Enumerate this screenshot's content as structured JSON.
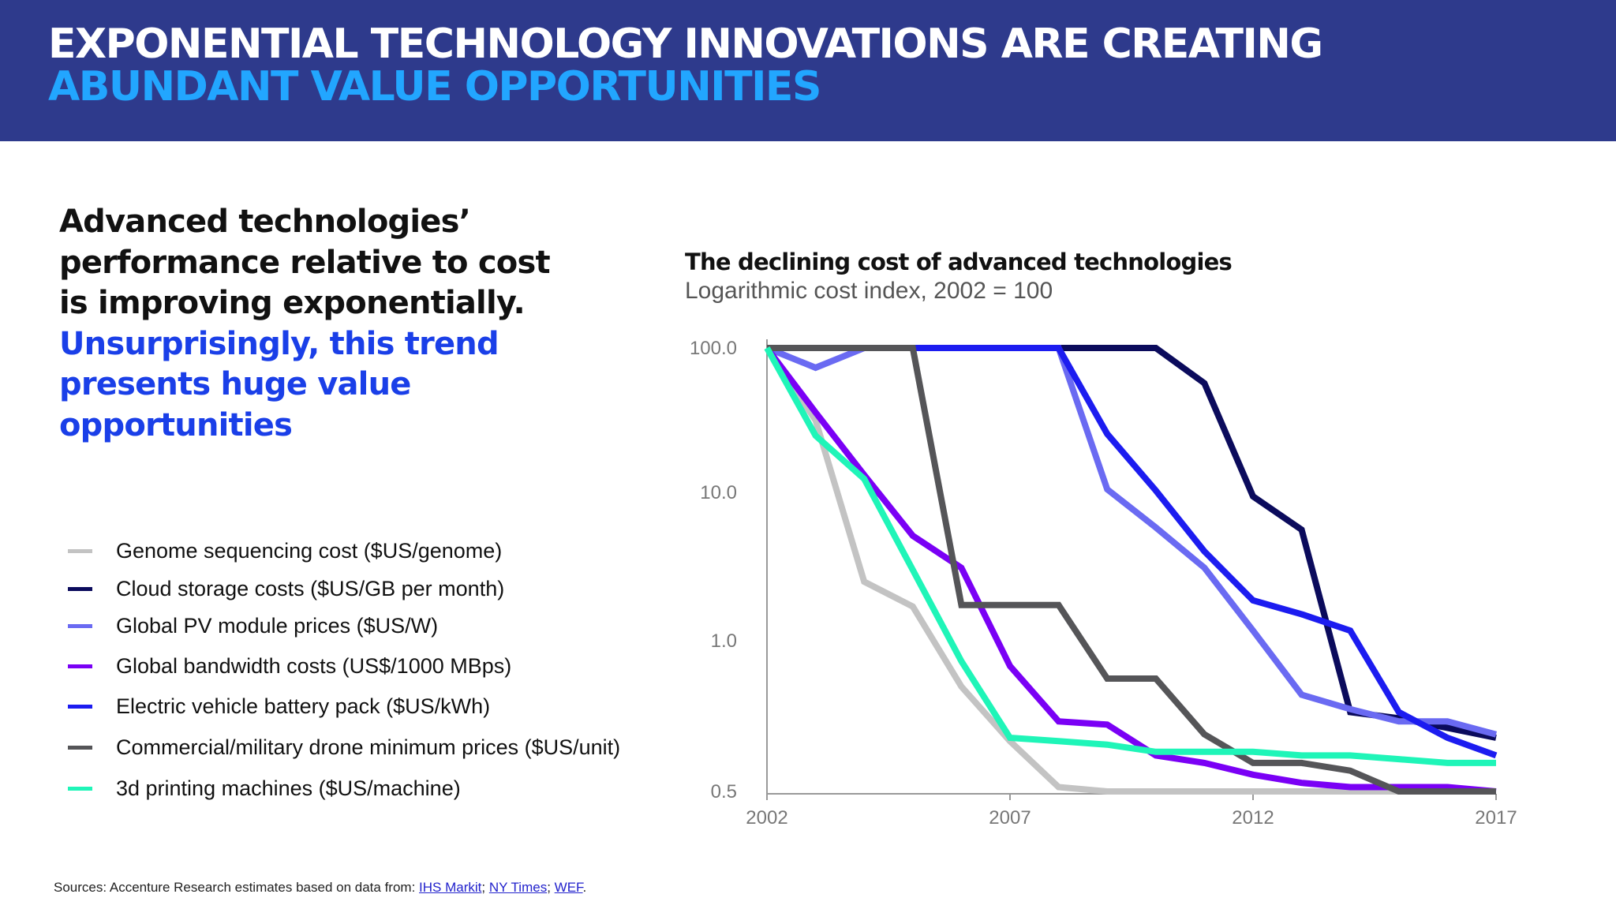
{
  "header": {
    "line1": "EXPONENTIAL TECHNOLOGY INNOVATIONS ARE CREATING",
    "line2": "ABUNDANT VALUE OPPORTUNITIES"
  },
  "lead": {
    "dark": "Advanced technologies’ performance relative to cost is improving exponentially.",
    "blue": "Unsurprisingly, this trend presents huge value opportunities"
  },
  "sources": {
    "prefix": "Sources: Accenture Research estimates based on data from: ",
    "links": [
      "IHS Markit",
      "NY Times",
      "WEF"
    ]
  },
  "chart_data": {
    "type": "line",
    "title": "The declining cost of advanced technologies",
    "subtitle": "Logarithmic cost index, 2002 = 100",
    "x": [
      2002,
      2003,
      2004,
      2005,
      2006,
      2007,
      2008,
      2009,
      2010,
      2011,
      2012,
      2013,
      2014,
      2015,
      2016,
      2017
    ],
    "x_ticks": [
      "2002",
      "2007",
      "2012",
      "2017"
    ],
    "y_ticks": [
      "100.0",
      "10.0",
      "1.0",
      "0.5"
    ],
    "y_scale": "log",
    "ylim": [
      0.5,
      100
    ],
    "grid": false,
    "legend": "left",
    "series": [
      {
        "name": "Genome sequencing cost ($US/genome)",
        "color": "#c3c3c3",
        "values": [
          100,
          31.6,
          2.5,
          1.7,
          0.81,
          0.63,
          0.51,
          0.5,
          0.5,
          0.5,
          0.5,
          0.5,
          0.5,
          0.5,
          0.5,
          0.5
        ]
      },
      {
        "name": "Cloud storage costs ($US/GB per month)",
        "color": "#0b0b5c",
        "values": [
          100,
          100,
          100,
          100,
          100,
          100,
          100,
          100,
          100,
          57,
          9.4,
          5.6,
          0.72,
          0.7,
          0.67,
          0.64
        ]
      },
      {
        "name": "Global PV module prices ($US/W)",
        "color": "#6a6af2",
        "values": [
          100,
          73,
          100,
          100,
          100,
          100,
          100,
          10.5,
          5.8,
          3.1,
          1.17,
          0.78,
          0.73,
          0.69,
          0.69,
          0.65
        ]
      },
      {
        "name": "Global bandwidth costs (US$/1000 MBps)",
        "color": "#7a00f5",
        "values": [
          100,
          35.8,
          13.2,
          5.1,
          3.1,
          0.89,
          0.69,
          0.68,
          0.59,
          0.57,
          0.54,
          0.52,
          0.51,
          0.51,
          0.51,
          0.5
        ]
      },
      {
        "name": "Electric vehicle battery pack ($US/kWh)",
        "color": "#1c1cf0",
        "values": [
          100,
          100,
          100,
          100,
          100,
          100,
          100,
          25.4,
          10.3,
          4.0,
          1.87,
          1.51,
          1.17,
          0.72,
          0.64,
          0.59
        ]
      },
      {
        "name": "Commercial/military drone minimum prices ($US/unit)",
        "color": "#555558",
        "values": [
          100,
          100,
          100,
          100,
          1.74,
          1.74,
          1.74,
          0.84,
          0.84,
          0.65,
          0.57,
          0.57,
          0.55,
          0.5,
          0.5,
          0.5
        ]
      },
      {
        "name": "3d printing machines ($US/machine)",
        "color": "#1ff5b8",
        "values": [
          100,
          24.7,
          12.4,
          3.0,
          0.91,
          0.64,
          0.63,
          0.62,
          0.6,
          0.6,
          0.6,
          0.59,
          0.59,
          0.58,
          0.57,
          0.57
        ]
      }
    ]
  }
}
